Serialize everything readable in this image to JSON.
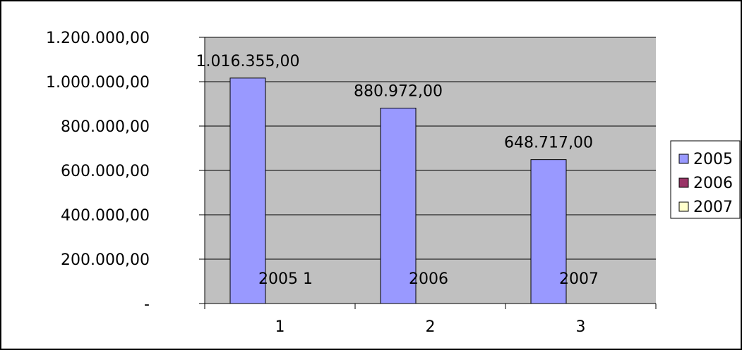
{
  "chart_data": {
    "type": "bar",
    "categories": [
      "1",
      "2",
      "3"
    ],
    "series": [
      {
        "name": "2005",
        "color": "#9999ff",
        "values": [
          1016355,
          880972,
          648717
        ]
      },
      {
        "name": "2006",
        "color": "#993366",
        "values": [
          0,
          0,
          0
        ]
      },
      {
        "name": "2007",
        "color": "#ffffcc",
        "values": [
          0,
          0,
          0
        ]
      }
    ],
    "data_labels": [
      "1.016.355,00",
      "880.972,00",
      "648.717,00"
    ],
    "annotations": [
      "2005 1",
      "2006",
      "2007"
    ],
    "ylim": [
      0,
      1200000
    ],
    "y_ticks": [
      {
        "value": 0,
        "label": "-"
      },
      {
        "value": 200000,
        "label": "200.000,00"
      },
      {
        "value": 400000,
        "label": "400.000,00"
      },
      {
        "value": 600000,
        "label": "600.000,00"
      },
      {
        "value": 800000,
        "label": "800.000,00"
      },
      {
        "value": 1000000,
        "label": "1.000.000,00"
      },
      {
        "value": 1200000,
        "label": "1.200.000,00"
      }
    ],
    "grid": true,
    "legend_position": "right",
    "plot_background": "#c0c0c0"
  }
}
